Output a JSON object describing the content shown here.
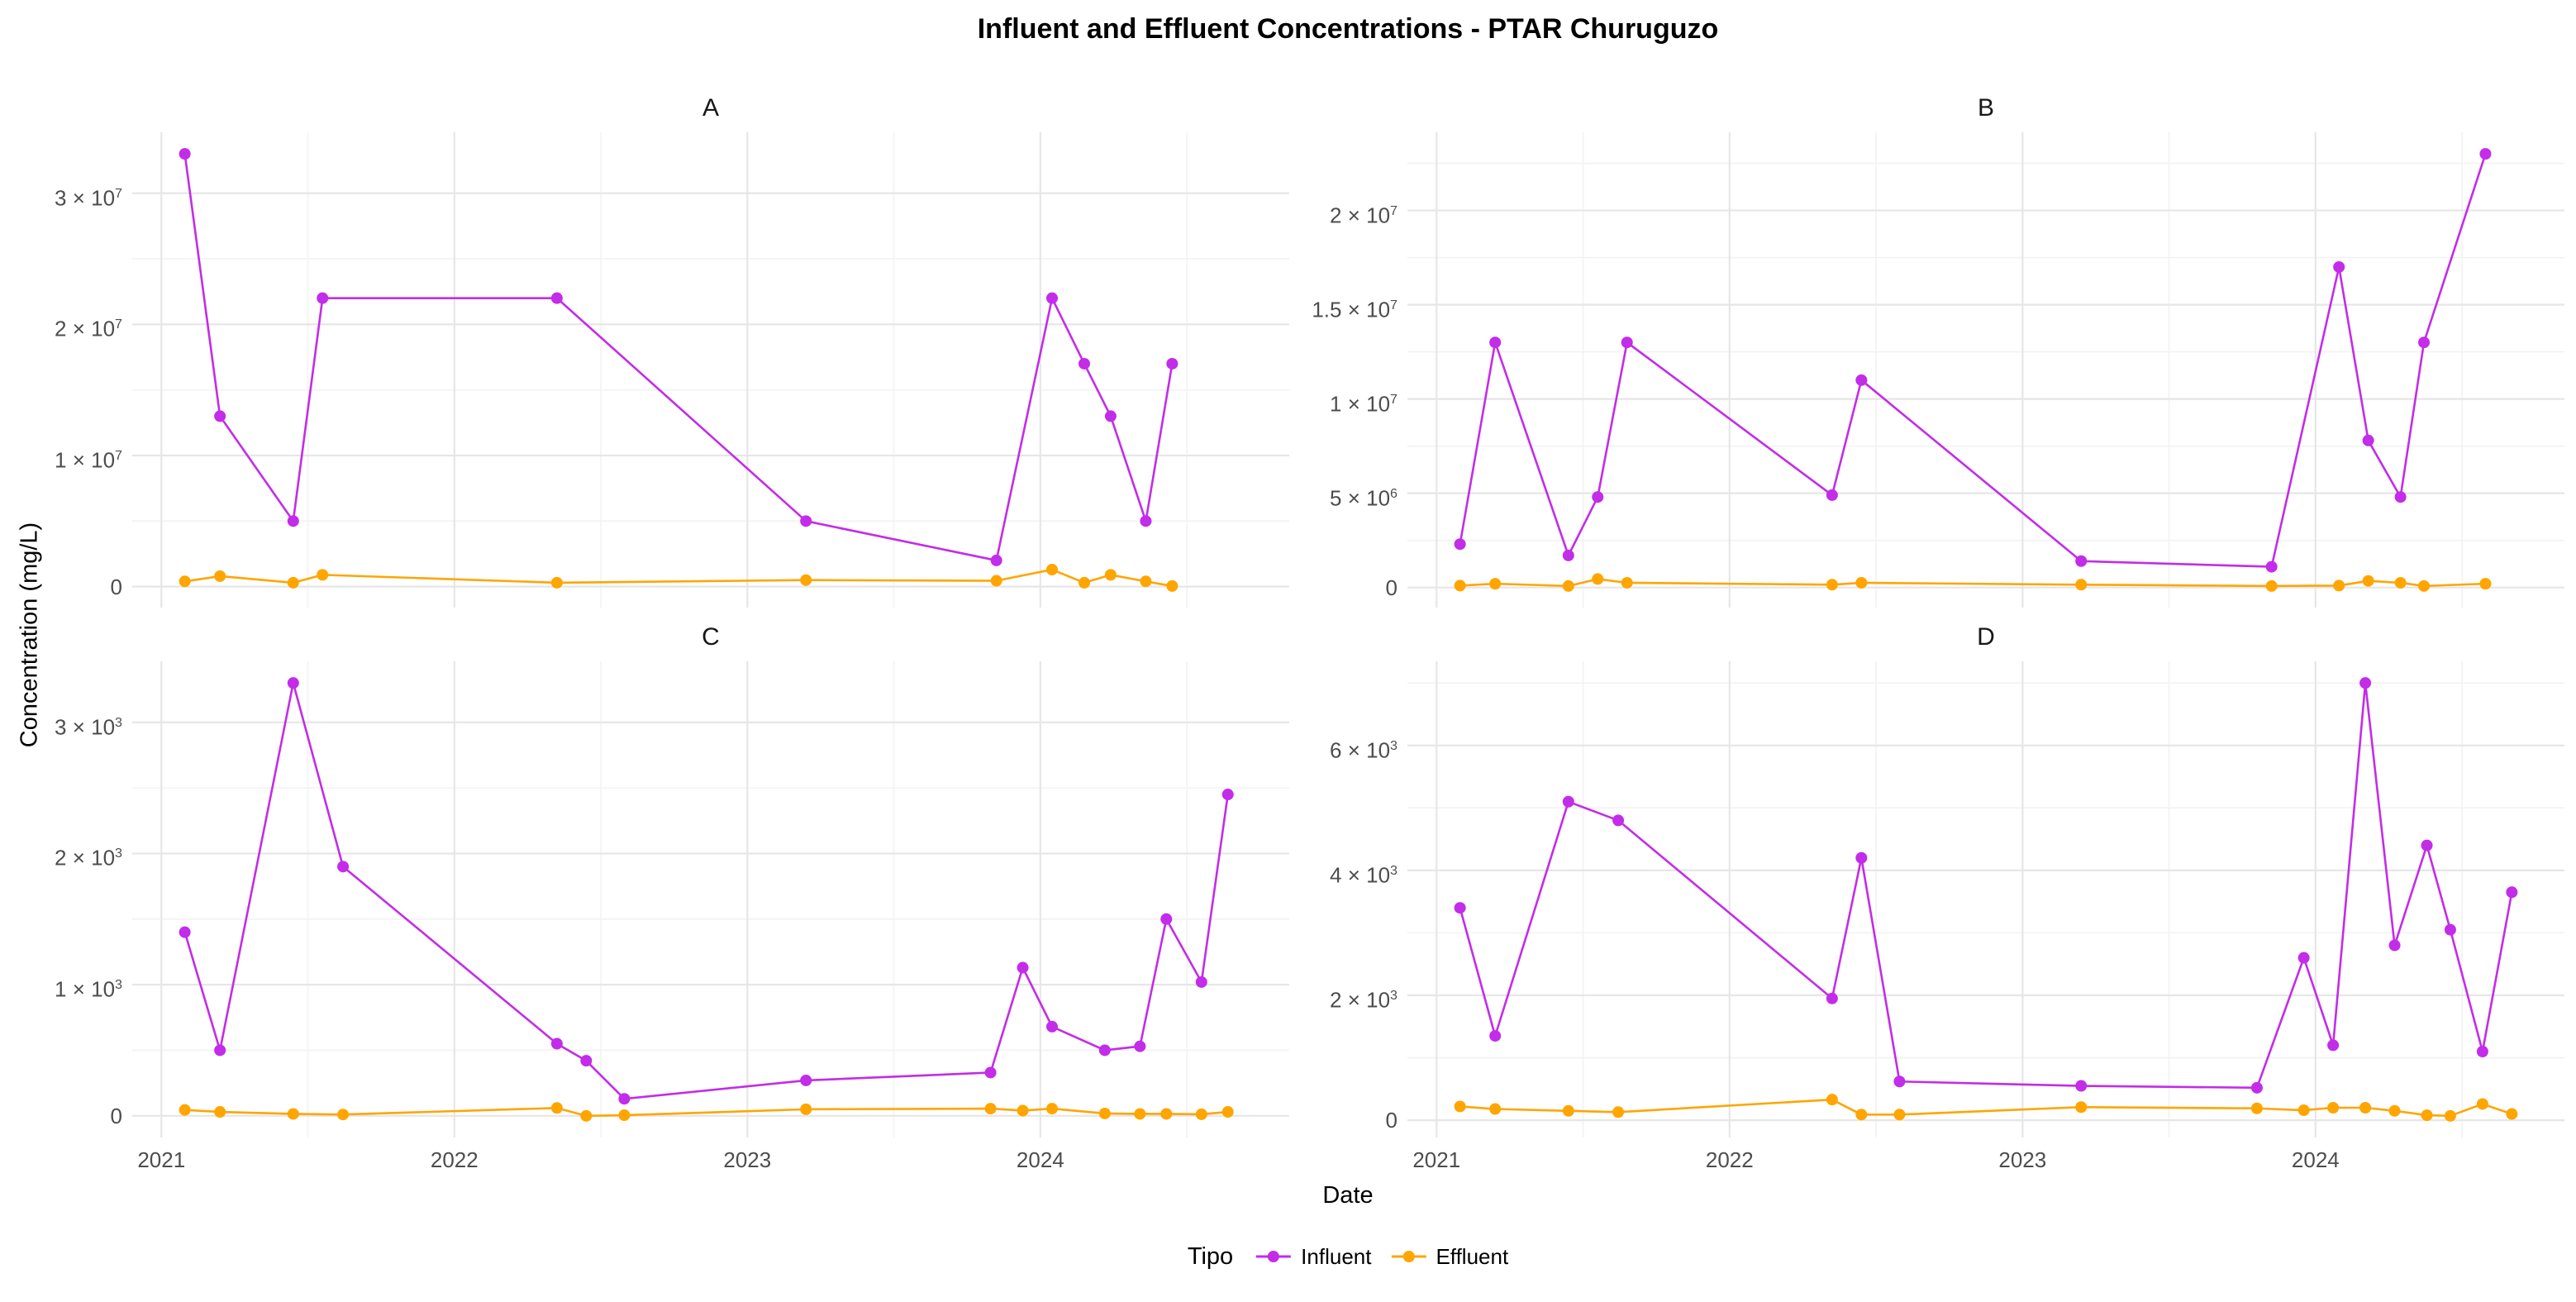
{
  "title": "Influent and Effluent Concentrations - PTAR Churuguzo",
  "axes": {
    "x_label": "Date",
    "y_label": "Concentration (mg/L)"
  },
  "legend": {
    "title": "Tipo",
    "items": [
      {
        "label": "Influent",
        "color": "#C32CE8"
      },
      {
        "label": "Effluent",
        "color": "#FFA500"
      }
    ]
  },
  "colors": {
    "influent": "#C32CE8",
    "effluent": "#FFA500",
    "grid_major": "#E6E6E6",
    "grid_minor": "#F2F2F2",
    "tick_text": "#4D4D4D"
  },
  "chart_data": [
    {
      "id": "A",
      "facet_label": "A",
      "type": "line",
      "x_unit": "decimal_year",
      "grid": true,
      "legend_position": "bottom",
      "x_ticks": [
        2021,
        2022,
        2023,
        2024
      ],
      "x_tick_labels": [
        "2021",
        "2022",
        "2023",
        "2024"
      ],
      "y_ticks": [
        0,
        10000000,
        20000000,
        30000000
      ],
      "y_tick_labels": [
        "0",
        "1 × 10^7",
        "2 × 10^7",
        "3 × 10^7"
      ],
      "ylim": [
        0,
        33000000
      ],
      "series": [
        {
          "name": "Influent",
          "x": [
            2021.08,
            2021.2,
            2021.45,
            2021.55,
            2022.35,
            2023.2,
            2023.85,
            2024.04,
            2024.15,
            2024.24,
            2024.36,
            2024.45
          ],
          "values": [
            33000000,
            13000000,
            5000000,
            22000000,
            22000000,
            5000000,
            2000000,
            22000000,
            17000000,
            13000000,
            5000000,
            17000000
          ]
        },
        {
          "name": "Effluent",
          "x": [
            2021.08,
            2021.2,
            2021.45,
            2021.55,
            2022.35,
            2023.2,
            2023.85,
            2024.04,
            2024.15,
            2024.24,
            2024.36,
            2024.45
          ],
          "values": [
            400000,
            800000,
            300000,
            900000,
            300000,
            500000,
            450000,
            1300000,
            300000,
            900000,
            400000,
            50000
          ]
        }
      ]
    },
    {
      "id": "B",
      "facet_label": "B",
      "type": "line",
      "x_unit": "decimal_year",
      "grid": true,
      "legend_position": "bottom",
      "x_ticks": [
        2021,
        2022,
        2023,
        2024
      ],
      "x_tick_labels": [
        "2021",
        "2022",
        "2023",
        "2024"
      ],
      "y_ticks": [
        0,
        5000000,
        10000000,
        15000000,
        20000000
      ],
      "y_tick_labels": [
        "0",
        "5 × 10^6",
        "1 × 10^7",
        "1.5 × 10^7",
        "2 × 10^7"
      ],
      "ylim": [
        0,
        23000000
      ],
      "series": [
        {
          "name": "Influent",
          "x": [
            2021.08,
            2021.2,
            2021.45,
            2021.55,
            2021.65,
            2022.35,
            2022.45,
            2023.2,
            2023.85,
            2024.08,
            2024.18,
            2024.29,
            2024.37,
            2024.58
          ],
          "values": [
            2300000,
            13000000,
            1700000,
            4800000,
            13000000,
            4900000,
            11000000,
            1400000,
            1100000,
            17000000,
            7800000,
            4800000,
            13000000,
            23000000
          ]
        },
        {
          "name": "Effluent",
          "x": [
            2021.08,
            2021.2,
            2021.45,
            2021.55,
            2021.65,
            2022.35,
            2022.45,
            2023.2,
            2023.85,
            2024.08,
            2024.18,
            2024.29,
            2024.37,
            2024.58
          ],
          "values": [
            100000,
            200000,
            80000,
            450000,
            250000,
            150000,
            250000,
            150000,
            80000,
            100000,
            350000,
            250000,
            80000,
            200000
          ]
        }
      ]
    },
    {
      "id": "C",
      "facet_label": "C",
      "type": "line",
      "x_unit": "decimal_year",
      "grid": true,
      "legend_position": "bottom",
      "x_ticks": [
        2021,
        2022,
        2023,
        2024
      ],
      "x_tick_labels": [
        "2021",
        "2022",
        "2023",
        "2024"
      ],
      "y_ticks": [
        0,
        1000,
        2000,
        3000
      ],
      "y_tick_labels": [
        "0",
        "1 × 10^3",
        "2 × 10^3",
        "3 × 10^3"
      ],
      "ylim": [
        0,
        3300
      ],
      "series": [
        {
          "name": "Influent",
          "x": [
            2021.08,
            2021.2,
            2021.45,
            2021.62,
            2022.35,
            2022.45,
            2022.58,
            2023.2,
            2023.83,
            2023.94,
            2024.04,
            2024.22,
            2024.34,
            2024.43,
            2024.55,
            2024.64
          ],
          "values": [
            1400,
            500,
            3300,
            1900,
            550,
            420,
            130,
            270,
            330,
            1130,
            680,
            500,
            530,
            1500,
            1020,
            2450
          ]
        },
        {
          "name": "Effluent",
          "x": [
            2021.08,
            2021.2,
            2021.45,
            2021.62,
            2022.35,
            2022.45,
            2022.58,
            2023.2,
            2023.83,
            2023.94,
            2024.04,
            2024.22,
            2024.34,
            2024.43,
            2024.55,
            2024.64
          ],
          "values": [
            45,
            30,
            15,
            10,
            60,
            0,
            5,
            50,
            55,
            40,
            55,
            18,
            15,
            15,
            12,
            30
          ]
        }
      ]
    },
    {
      "id": "D",
      "facet_label": "D",
      "type": "line",
      "x_unit": "decimal_year",
      "grid": true,
      "legend_position": "bottom",
      "x_ticks": [
        2021,
        2022,
        2023,
        2024
      ],
      "x_tick_labels": [
        "2021",
        "2022",
        "2023",
        "2024"
      ],
      "y_ticks": [
        0,
        2000,
        4000,
        6000
      ],
      "y_tick_labels": [
        "0",
        "2 × 10^3",
        "4 × 10^3",
        "6 × 10^3"
      ],
      "ylim": [
        0,
        7000
      ],
      "series": [
        {
          "name": "Influent",
          "x": [
            2021.08,
            2021.2,
            2021.45,
            2021.62,
            2022.35,
            2022.45,
            2022.58,
            2023.2,
            2023.8,
            2023.96,
            2024.06,
            2024.17,
            2024.27,
            2024.38,
            2024.46,
            2024.57,
            2024.67
          ],
          "values": [
            3400,
            1350,
            5100,
            4800,
            1950,
            4200,
            620,
            550,
            520,
            2600,
            1200,
            7000,
            2800,
            4400,
            3050,
            1100,
            3650
          ]
        },
        {
          "name": "Effluent",
          "x": [
            2021.08,
            2021.2,
            2021.45,
            2021.62,
            2022.35,
            2022.45,
            2022.58,
            2023.2,
            2023.8,
            2023.96,
            2024.06,
            2024.17,
            2024.27,
            2024.38,
            2024.46,
            2024.57,
            2024.67
          ],
          "values": [
            220,
            180,
            150,
            130,
            330,
            90,
            90,
            210,
            190,
            160,
            200,
            200,
            150,
            80,
            70,
            260,
            100
          ]
        }
      ]
    }
  ]
}
